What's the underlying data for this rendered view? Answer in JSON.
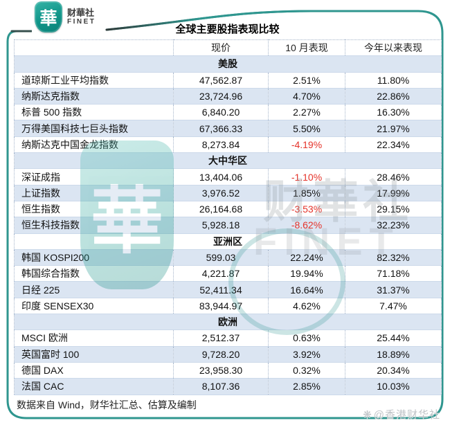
{
  "colors": {
    "accent_teal": "#2f968f",
    "row_blue": "#dbe5f2",
    "negative_red": "#e5332a",
    "text": "#1d1d1f"
  },
  "brand": {
    "logo_glyph": "華",
    "name_cn": "财華社",
    "name_en": "FINET"
  },
  "title": "全球主要股指表现比较",
  "chart_data": {
    "type": "table",
    "title": "全球主要股指表现比较",
    "columns": [
      "",
      "现价",
      "10 月表现",
      "今年以来表现"
    ],
    "sections": [
      {
        "header": "美股",
        "rows": [
          [
            "道琼斯工业平均指数",
            "47,562.87",
            "2.51%",
            "11.80%"
          ],
          [
            "纳斯达克指数",
            "23,724.96",
            "4.70%",
            "22.86%"
          ],
          [
            "标普 500 指数",
            "6,840.20",
            "2.27%",
            "16.30%"
          ],
          [
            "万得美国科技七巨头指数",
            "67,366.33",
            "5.50%",
            "21.97%"
          ],
          [
            "纳斯达克中国金龙指数",
            "8,273.84",
            "-4.19%",
            "22.34%"
          ]
        ]
      },
      {
        "header": "大中华区",
        "rows": [
          [
            "深证成指",
            "13,404.06",
            "-1.10%",
            "28.46%"
          ],
          [
            "上证指数",
            "3,976.52",
            "1.85%",
            "17.99%"
          ],
          [
            "恒生指数",
            "26,164.68",
            "-3.53%",
            "29.15%"
          ],
          [
            "恒生科技指数",
            "5,928.18",
            "-8.62%",
            "32.23%"
          ]
        ]
      },
      {
        "header": "亚洲区",
        "rows": [
          [
            "韩国 KOSPI200",
            "599.03",
            "22.24%",
            "82.32%"
          ],
          [
            "韩国综合指数",
            "4,221.87",
            "19.94%",
            "71.18%"
          ],
          [
            "日经 225",
            "52,411.34",
            "16.64%",
            "31.37%"
          ],
          [
            "印度 SENSEX30",
            "83,944.97",
            "4.62%",
            "7.47%"
          ]
        ]
      },
      {
        "header": "欧洲",
        "rows": [
          [
            "MSCI 欧洲",
            "2,512.37",
            "0.63%",
            "25.44%"
          ],
          [
            "英国富时 100",
            "9,728.20",
            "3.92%",
            "18.89%"
          ],
          [
            "德国 DAX",
            "23,958.30",
            "0.32%",
            "20.34%"
          ],
          [
            "法国 CAC",
            "8,107.36",
            "2.85%",
            "10.03%"
          ]
        ]
      }
    ]
  },
  "footer": {
    "source_note": "数据来自 Wind，财华社汇总、估算及编制"
  },
  "watermark": {
    "logo_glyph": "華",
    "text_cn": "财華社",
    "text_en": "FINET",
    "credit": "@香港财华社",
    "credit_icon": "❋"
  }
}
